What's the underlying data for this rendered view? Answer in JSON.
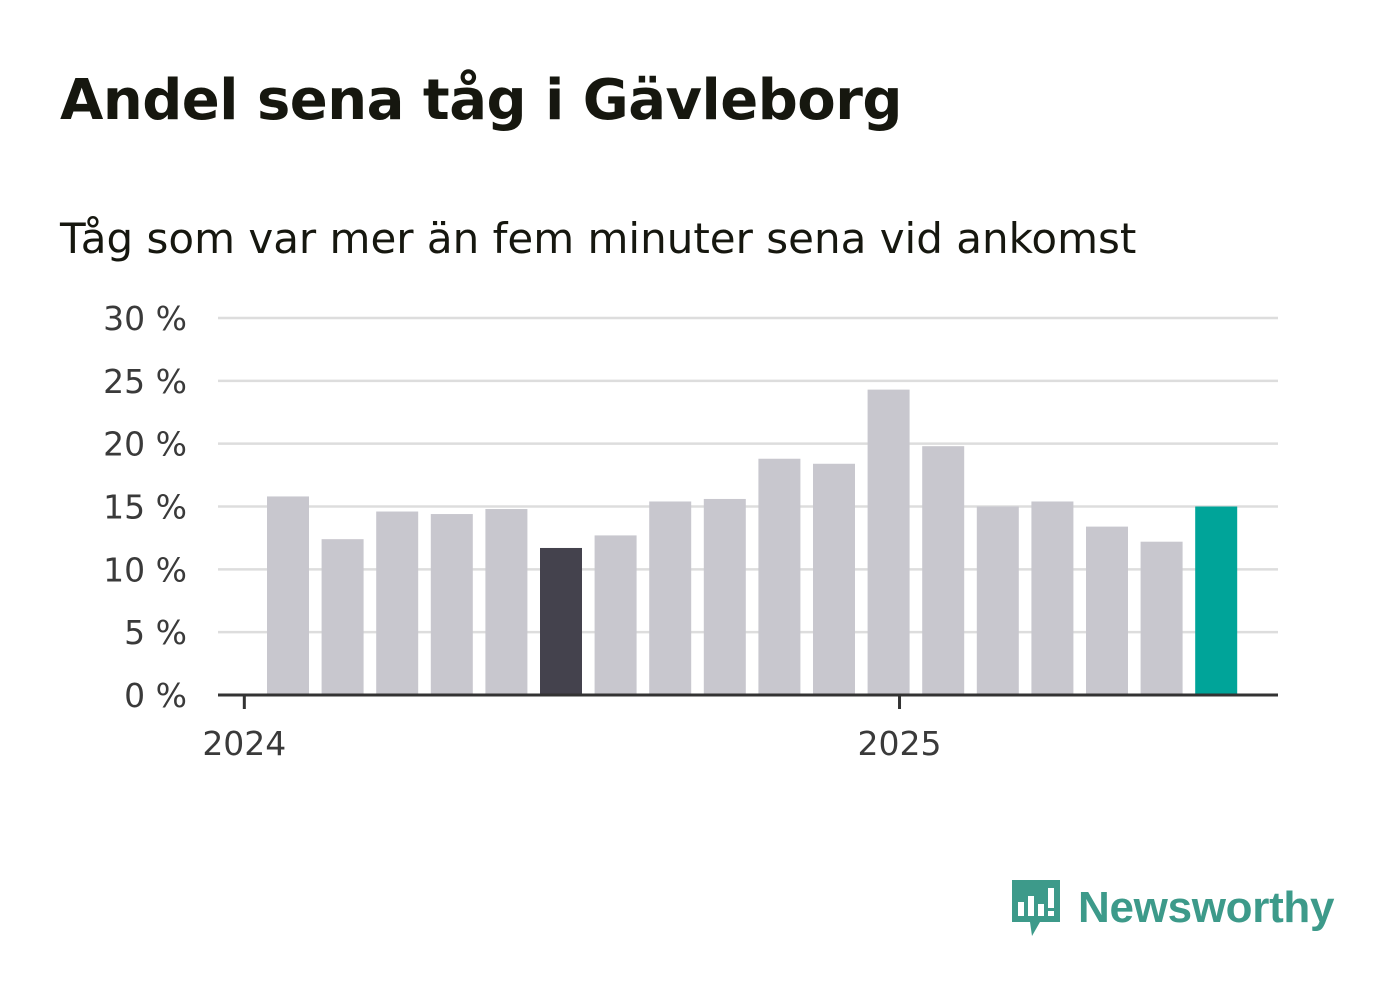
{
  "chart_data": {
    "type": "bar",
    "title": "Andel sena tåg i Gävleborg",
    "subtitle": "Tåg som var mer än fem minuter sena vid ankomst",
    "xlabel": "",
    "ylabel": "",
    "ylim": [
      0,
      30
    ],
    "y_ticks": [
      "0 %",
      "5 %",
      "10 %",
      "15 %",
      "20 %",
      "25 %",
      "30 %"
    ],
    "x_tick_labels": [
      {
        "label": "2024",
        "at_index": -0.8
      },
      {
        "label": "2025",
        "at_index": 11.2
      }
    ],
    "values": [
      15.8,
      12.4,
      14.6,
      14.4,
      14.8,
      11.7,
      12.7,
      15.4,
      15.6,
      18.8,
      18.4,
      24.3,
      19.8,
      15.0,
      15.4,
      13.4,
      12.2,
      15.0
    ],
    "highlight": [
      {
        "index": 5,
        "color": "#44424d"
      },
      {
        "index": 17,
        "color": "#00a499"
      }
    ],
    "bar_color": "#c8c7ce",
    "grid": true,
    "legend": "none"
  },
  "brand": {
    "name": "Newsworthy",
    "color": "#3d9a8a",
    "icon": "newsworthy-logo-icon"
  }
}
